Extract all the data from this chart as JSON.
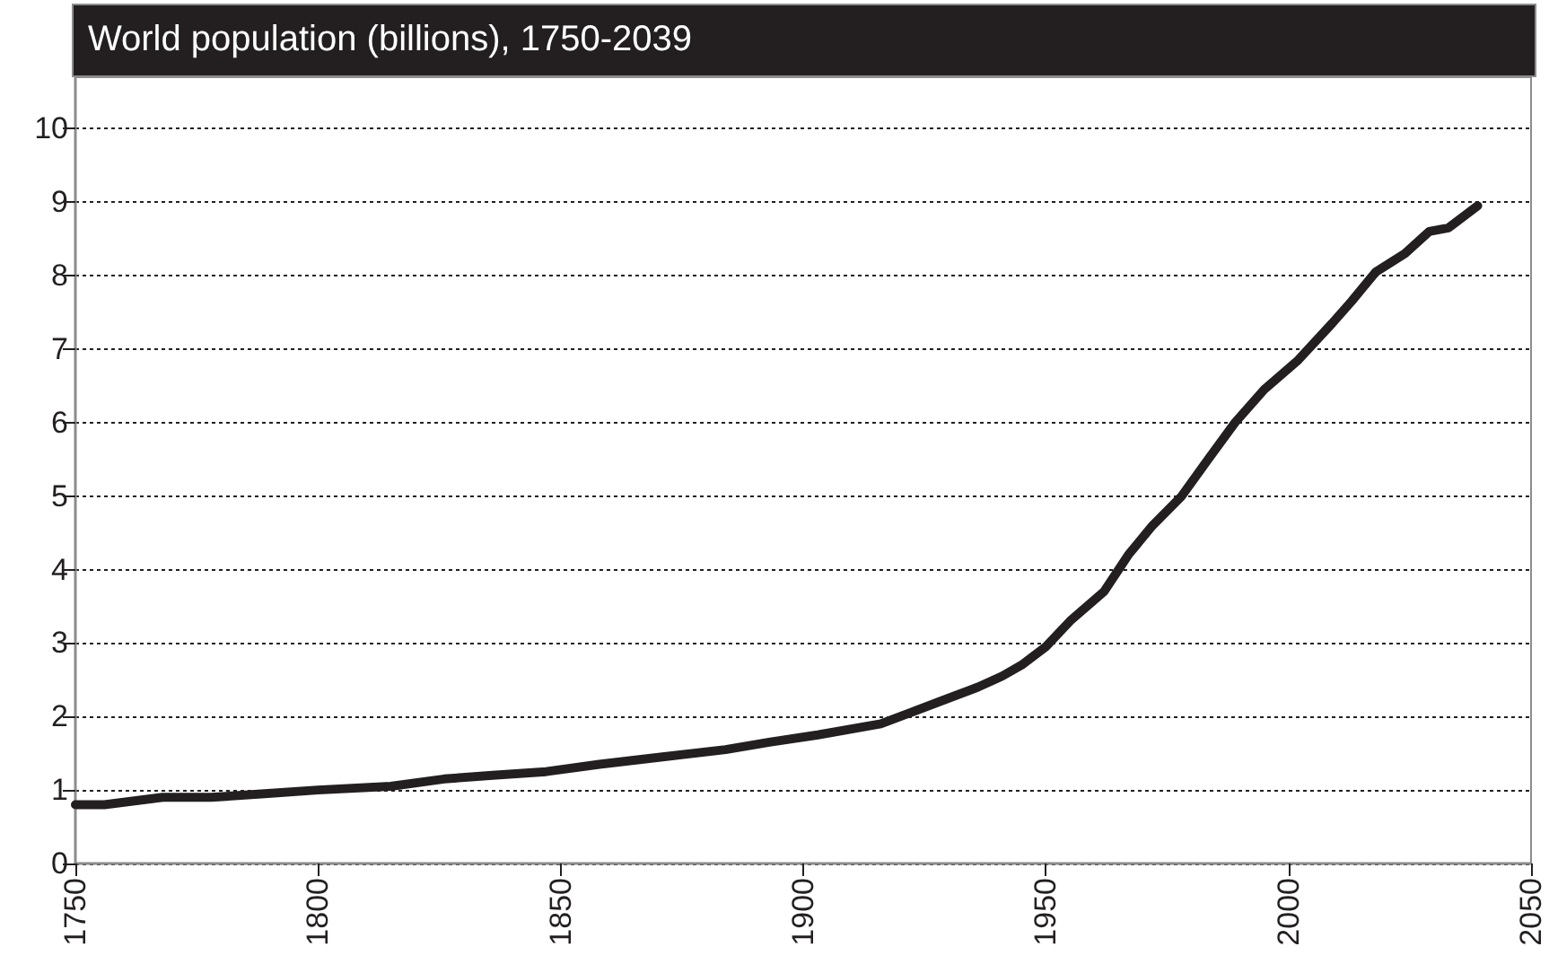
{
  "chart_data": {
    "type": "line",
    "title": "World population (billions), 1750-2039",
    "x": [
      1750,
      1756,
      1768,
      1778,
      1789,
      1800,
      1815,
      1826,
      1836,
      1847,
      1858,
      1871,
      1884,
      1893,
      1903,
      1916,
      1922,
      1930,
      1936,
      1941,
      1945,
      1950,
      1955,
      1962,
      1967,
      1972,
      1978,
      1984,
      1989,
      1995,
      2002,
      2009,
      2013,
      2018,
      2024,
      2029,
      2033,
      2039
    ],
    "series": [
      {
        "color": "#231f20",
        "values": [
          0.8,
          0.8,
          0.9,
          0.9,
          0.95,
          1.0,
          1.05,
          1.15,
          1.2,
          1.25,
          1.35,
          1.45,
          1.55,
          1.65,
          1.75,
          1.9,
          2.05,
          2.25,
          2.4,
          2.55,
          2.7,
          2.95,
          3.3,
          3.7,
          4.2,
          4.6,
          5.0,
          5.55,
          6.0,
          6.45,
          6.85,
          7.35,
          7.65,
          8.05,
          8.3,
          8.6,
          8.65,
          8.95
        ]
      }
    ],
    "xlim": [
      1750,
      2050
    ],
    "xticks": [
      1750,
      1800,
      1850,
      1900,
      1950,
      2000,
      2050
    ],
    "ylim": [
      0,
      10.7
    ],
    "yticks": [
      0,
      1,
      2,
      3,
      4,
      5,
      6,
      7,
      8,
      9,
      10
    ],
    "grid": "y",
    "marker": "none",
    "line_style": "solid"
  }
}
